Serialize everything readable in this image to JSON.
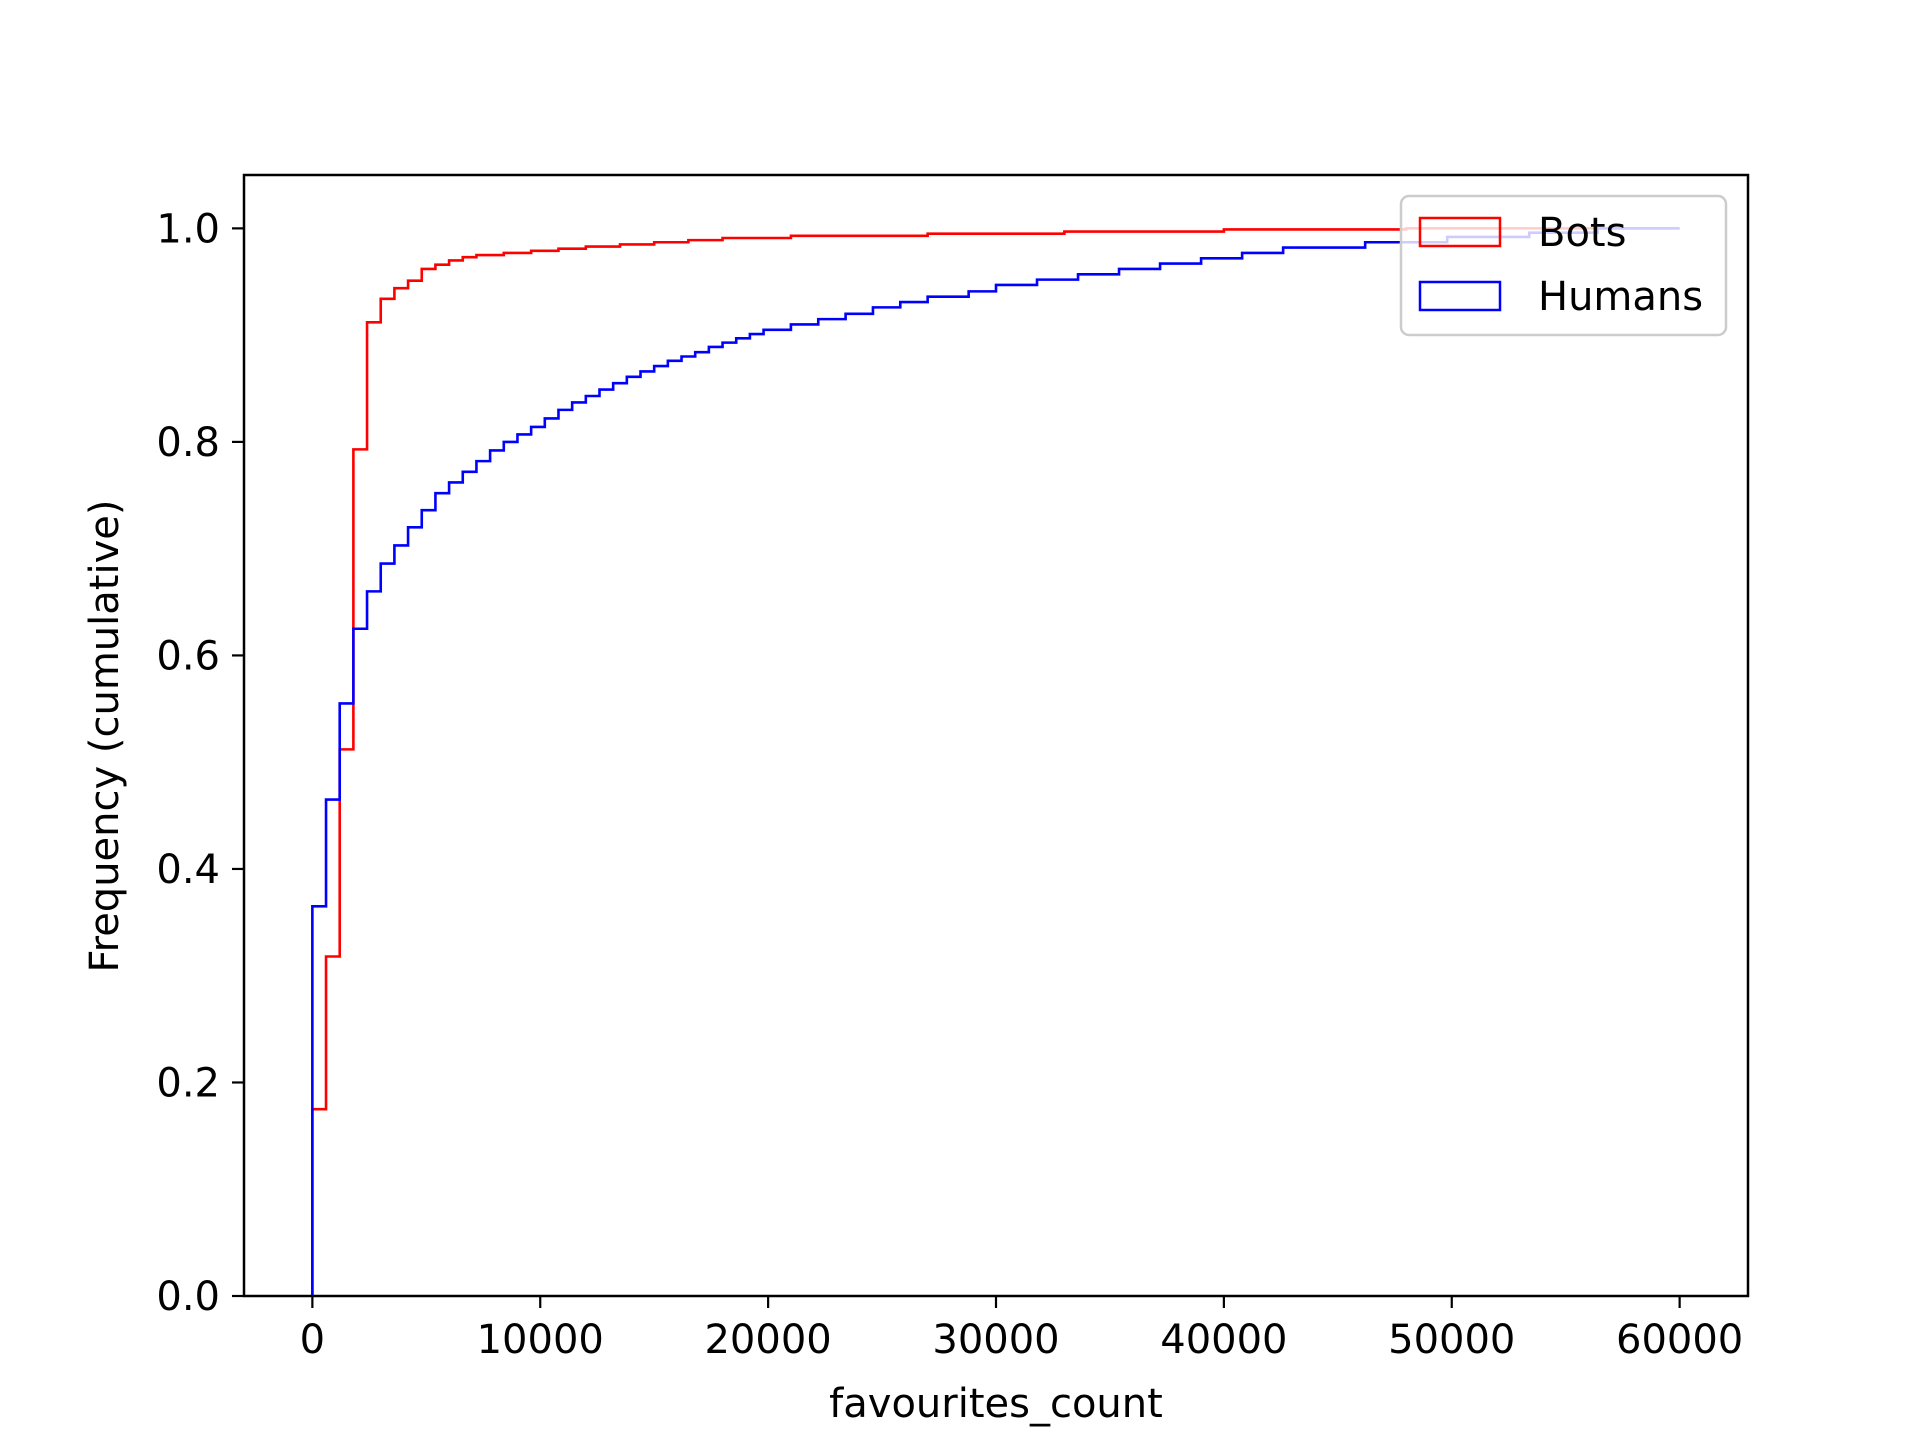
{
  "chart_data": {
    "type": "line",
    "step": true,
    "cumulative": true,
    "title": "",
    "xlabel": "favourites_count",
    "ylabel": "Frequency (cumulative)",
    "xlim": [
      -3000,
      63000
    ],
    "ylim": [
      0.0,
      1.05
    ],
    "xticks": [
      0,
      10000,
      20000,
      30000,
      40000,
      50000,
      60000
    ],
    "xtick_labels": [
      "0",
      "10000",
      "20000",
      "30000",
      "40000",
      "50000",
      "60000"
    ],
    "yticks": [
      0.0,
      0.2,
      0.4,
      0.6,
      0.8,
      1.0
    ],
    "ytick_labels": [
      "0.0",
      "0.2",
      "0.4",
      "0.6",
      "0.8",
      "1.0"
    ],
    "grid": false,
    "legend": "top-right",
    "series": [
      {
        "name": "Bots",
        "color": "#ff0000",
        "points": [
          [
            0,
            0.0
          ],
          [
            0,
            0.175
          ],
          [
            600,
            0.175
          ],
          [
            600,
            0.318
          ],
          [
            1200,
            0.318
          ],
          [
            1200,
            0.512
          ],
          [
            1800,
            0.512
          ],
          [
            1800,
            0.793
          ],
          [
            2400,
            0.793
          ],
          [
            2400,
            0.912
          ],
          [
            3000,
            0.912
          ],
          [
            3000,
            0.934
          ],
          [
            3600,
            0.934
          ],
          [
            3600,
            0.944
          ],
          [
            4200,
            0.944
          ],
          [
            4200,
            0.951
          ],
          [
            4800,
            0.951
          ],
          [
            4800,
            0.962
          ],
          [
            5400,
            0.962
          ],
          [
            5400,
            0.966
          ],
          [
            6000,
            0.966
          ],
          [
            6000,
            0.97
          ],
          [
            6600,
            0.97
          ],
          [
            6600,
            0.973
          ],
          [
            7200,
            0.973
          ],
          [
            7200,
            0.975
          ],
          [
            8400,
            0.975
          ],
          [
            8400,
            0.977
          ],
          [
            9600,
            0.977
          ],
          [
            9600,
            0.979
          ],
          [
            10800,
            0.979
          ],
          [
            10800,
            0.981
          ],
          [
            12000,
            0.981
          ],
          [
            12000,
            0.983
          ],
          [
            13500,
            0.983
          ],
          [
            13500,
            0.985
          ],
          [
            15000,
            0.985
          ],
          [
            15000,
            0.987
          ],
          [
            16500,
            0.987
          ],
          [
            16500,
            0.989
          ],
          [
            18000,
            0.989
          ],
          [
            18000,
            0.991
          ],
          [
            21000,
            0.991
          ],
          [
            21000,
            0.993
          ],
          [
            27000,
            0.993
          ],
          [
            27000,
            0.995
          ],
          [
            33000,
            0.995
          ],
          [
            33000,
            0.997
          ],
          [
            40000,
            0.997
          ],
          [
            40000,
            0.999
          ],
          [
            48000,
            0.999
          ],
          [
            48000,
            1.0
          ],
          [
            60000,
            1.0
          ]
        ]
      },
      {
        "name": "Humans",
        "color": "#0000ff",
        "points": [
          [
            0,
            0.0
          ],
          [
            0,
            0.365
          ],
          [
            600,
            0.365
          ],
          [
            600,
            0.465
          ],
          [
            1200,
            0.465
          ],
          [
            1200,
            0.555
          ],
          [
            1800,
            0.555
          ],
          [
            1800,
            0.625
          ],
          [
            2400,
            0.625
          ],
          [
            2400,
            0.66
          ],
          [
            3000,
            0.66
          ],
          [
            3000,
            0.686
          ],
          [
            3600,
            0.686
          ],
          [
            3600,
            0.703
          ],
          [
            4200,
            0.703
          ],
          [
            4200,
            0.72
          ],
          [
            4800,
            0.72
          ],
          [
            4800,
            0.736
          ],
          [
            5400,
            0.736
          ],
          [
            5400,
            0.752
          ],
          [
            6000,
            0.752
          ],
          [
            6000,
            0.762
          ],
          [
            6600,
            0.762
          ],
          [
            6600,
            0.772
          ],
          [
            7200,
            0.772
          ],
          [
            7200,
            0.782
          ],
          [
            7800,
            0.782
          ],
          [
            7800,
            0.792
          ],
          [
            8400,
            0.792
          ],
          [
            8400,
            0.8
          ],
          [
            9000,
            0.8
          ],
          [
            9000,
            0.807
          ],
          [
            9600,
            0.807
          ],
          [
            9600,
            0.814
          ],
          [
            10200,
            0.814
          ],
          [
            10200,
            0.822
          ],
          [
            10800,
            0.822
          ],
          [
            10800,
            0.83
          ],
          [
            11400,
            0.83
          ],
          [
            11400,
            0.837
          ],
          [
            12000,
            0.837
          ],
          [
            12000,
            0.843
          ],
          [
            12600,
            0.843
          ],
          [
            12600,
            0.849
          ],
          [
            13200,
            0.849
          ],
          [
            13200,
            0.855
          ],
          [
            13800,
            0.855
          ],
          [
            13800,
            0.861
          ],
          [
            14400,
            0.861
          ],
          [
            14400,
            0.866
          ],
          [
            15000,
            0.866
          ],
          [
            15000,
            0.871
          ],
          [
            15600,
            0.871
          ],
          [
            15600,
            0.876
          ],
          [
            16200,
            0.876
          ],
          [
            16200,
            0.88
          ],
          [
            16800,
            0.88
          ],
          [
            16800,
            0.884
          ],
          [
            17400,
            0.884
          ],
          [
            17400,
            0.889
          ],
          [
            18000,
            0.889
          ],
          [
            18000,
            0.893
          ],
          [
            18600,
            0.893
          ],
          [
            18600,
            0.897
          ],
          [
            19200,
            0.897
          ],
          [
            19200,
            0.901
          ],
          [
            19800,
            0.901
          ],
          [
            19800,
            0.905
          ],
          [
            21000,
            0.905
          ],
          [
            21000,
            0.91
          ],
          [
            22200,
            0.91
          ],
          [
            22200,
            0.915
          ],
          [
            23400,
            0.915
          ],
          [
            23400,
            0.92
          ],
          [
            24600,
            0.92
          ],
          [
            24600,
            0.926
          ],
          [
            25800,
            0.926
          ],
          [
            25800,
            0.931
          ],
          [
            27000,
            0.931
          ],
          [
            27000,
            0.936
          ],
          [
            28800,
            0.936
          ],
          [
            28800,
            0.941
          ],
          [
            30000,
            0.941
          ],
          [
            30000,
            0.947
          ],
          [
            31800,
            0.947
          ],
          [
            31800,
            0.952
          ],
          [
            33600,
            0.952
          ],
          [
            33600,
            0.957
          ],
          [
            35400,
            0.957
          ],
          [
            35400,
            0.962
          ],
          [
            37200,
            0.962
          ],
          [
            37200,
            0.967
          ],
          [
            39000,
            0.967
          ],
          [
            39000,
            0.972
          ],
          [
            40800,
            0.972
          ],
          [
            40800,
            0.977
          ],
          [
            42600,
            0.977
          ],
          [
            42600,
            0.982
          ],
          [
            46200,
            0.982
          ],
          [
            46200,
            0.987
          ],
          [
            49800,
            0.987
          ],
          [
            49800,
            0.992
          ],
          [
            53400,
            0.992
          ],
          [
            53400,
            0.996
          ],
          [
            56400,
            0.996
          ],
          [
            56400,
            1.0
          ],
          [
            60000,
            1.0
          ]
        ]
      }
    ]
  }
}
